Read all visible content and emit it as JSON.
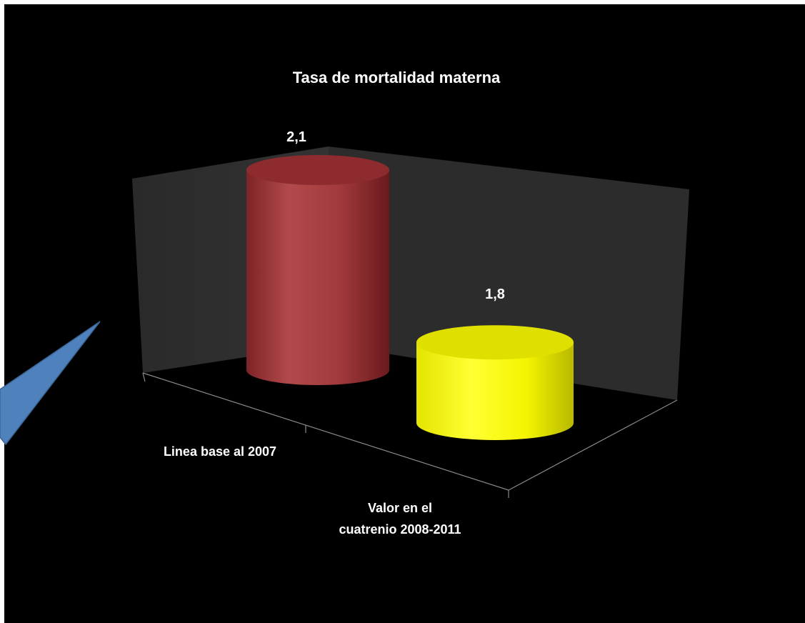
{
  "chart_data": {
    "type": "bar",
    "title": "Tasa de mortalidad materna",
    "categories": [
      "Linea base al 2007",
      "Valor en el cuatrenio 2008-2011"
    ],
    "category_lines": [
      [
        "Linea base al 2007"
      ],
      [
        "Valor en el",
        "cuatrenio 2008-2011"
      ]
    ],
    "values": [
      2.1,
      1.8
    ],
    "value_labels": [
      "2,1",
      "1,8"
    ],
    "bar_colors": [
      "#a0363a",
      "#f2f200"
    ],
    "style": "3d-cylinder",
    "background": "#000000"
  },
  "colors": {
    "background": "#000000",
    "text": "#ffffff",
    "callout": "#4f81bd"
  }
}
